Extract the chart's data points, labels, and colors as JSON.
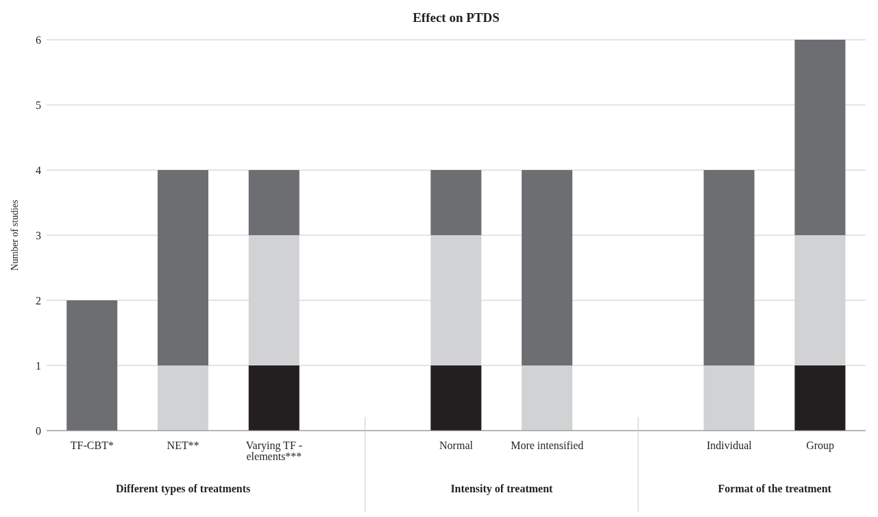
{
  "chart_data": {
    "type": "bar",
    "title": "Effect on PTDS",
    "ylabel": "Number of studies",
    "categories": [
      "TF-CBT*",
      "NET**",
      "Varying TF - elements***",
      null,
      "Normal",
      "More intensified",
      null,
      "Individual",
      "Group"
    ],
    "stacked": true,
    "series": [
      {
        "color": "#231f20",
        "values": [
          0,
          0,
          1,
          null,
          1,
          0,
          null,
          0,
          1
        ]
      },
      {
        "color": "#d1d2d4",
        "values": [
          0,
          1,
          2,
          null,
          2,
          1,
          null,
          1,
          2
        ]
      },
      {
        "color": "#6d6e71",
        "values": [
          2,
          3,
          1,
          null,
          1,
          3,
          null,
          3,
          3
        ]
      }
    ],
    "ylim": [
      0,
      6
    ],
    "yticks": [
      0,
      1,
      2,
      3,
      4,
      5,
      6
    ],
    "grid": "y",
    "legend": false,
    "annotations": [
      "Different types of treatments",
      "Intensity of treatment",
      "Format of the treatment"
    ]
  }
}
